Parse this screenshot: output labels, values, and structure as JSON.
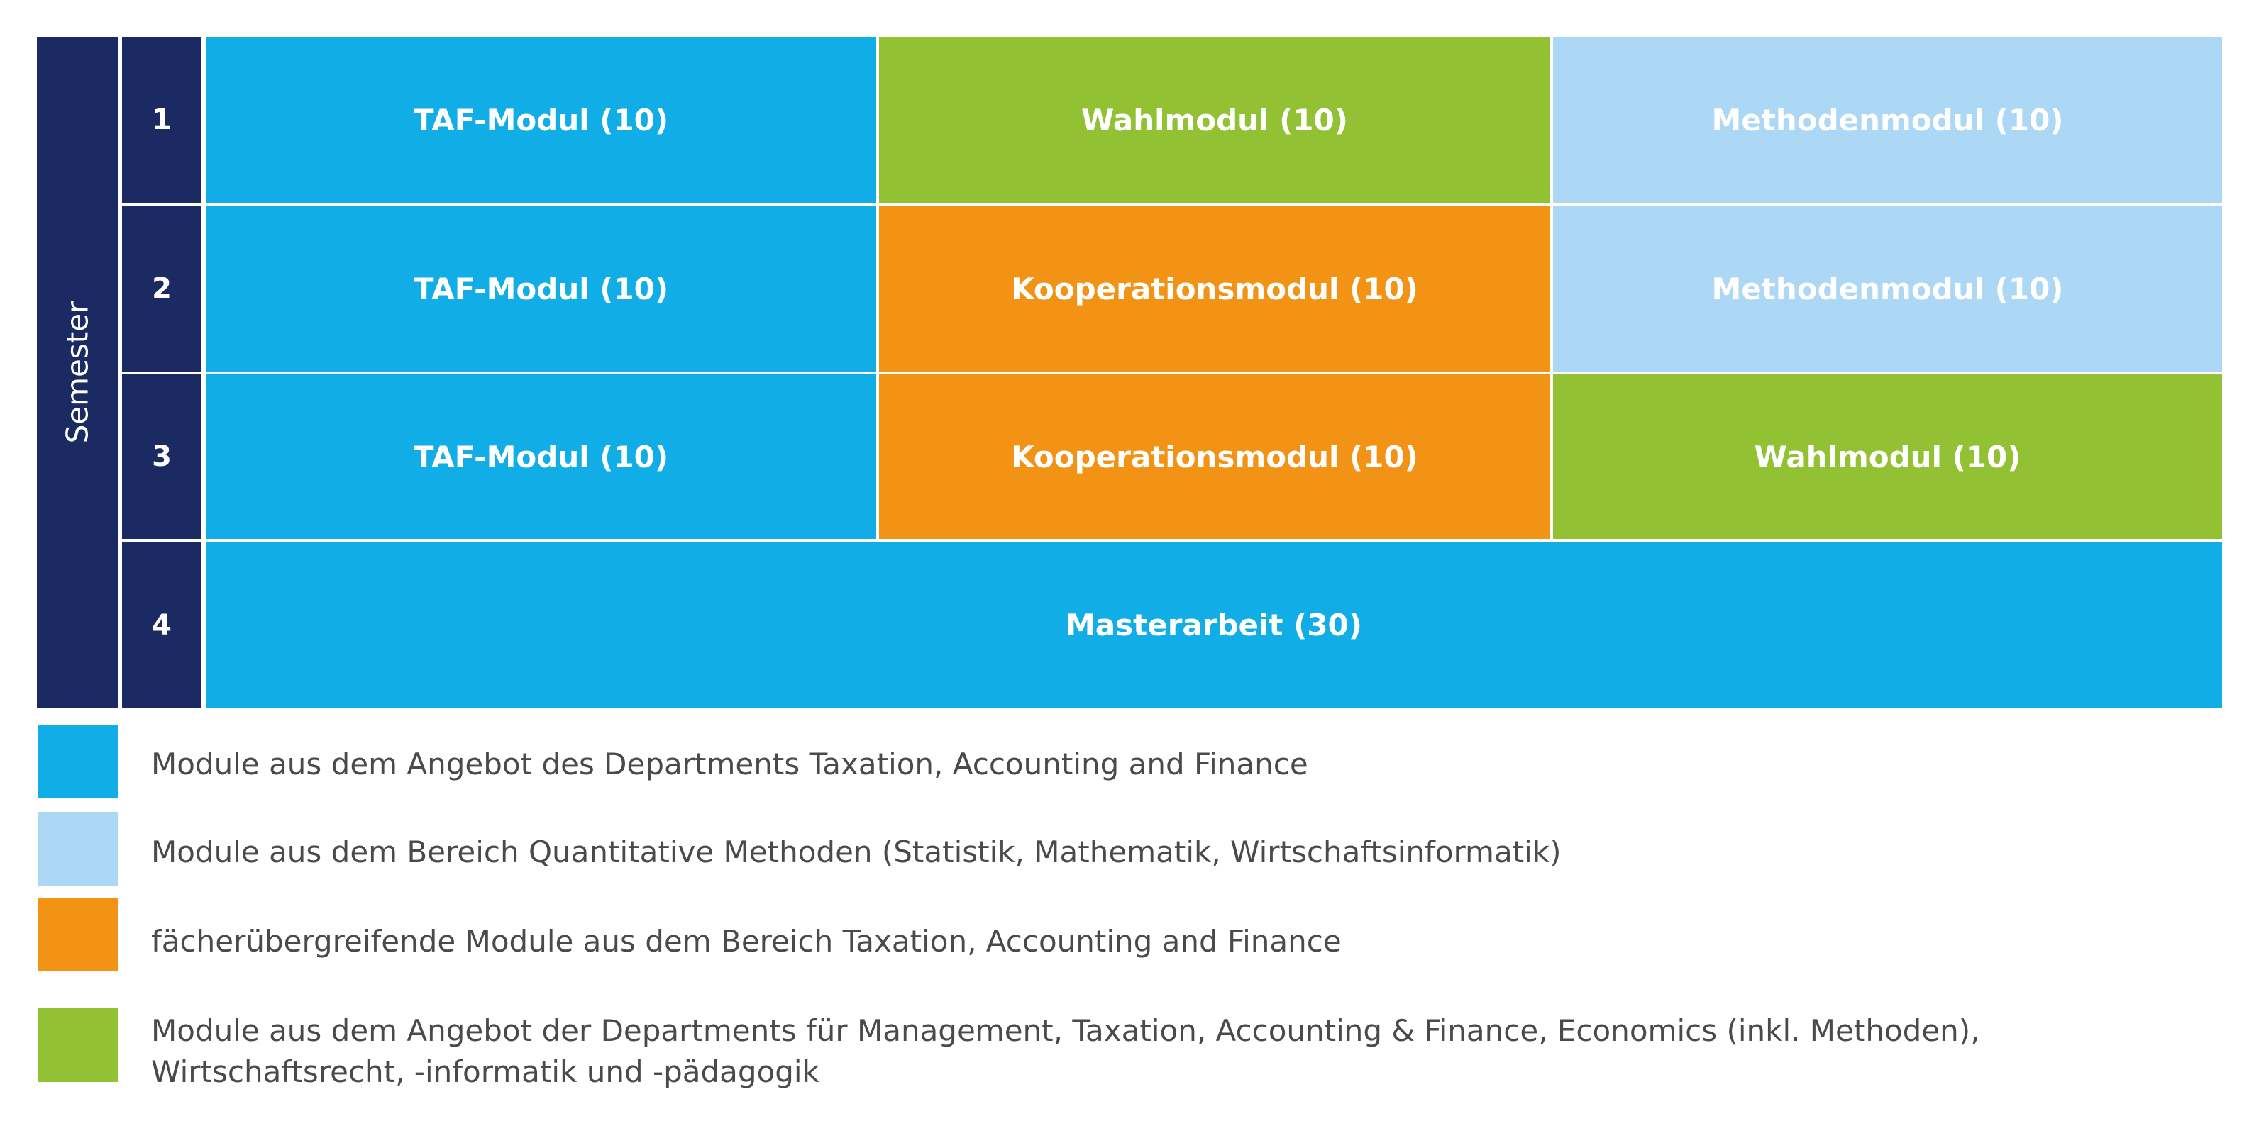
{
  "colors": {
    "navy": "#1c2a64",
    "taf_blue": "#10ade6",
    "light_blue": "#acd7f5",
    "orange": "#f39315",
    "green": "#92c233"
  },
  "grid": {
    "semester_label": "Semester",
    "rows": [
      {
        "number": "1",
        "cells": [
          {
            "label": "TAF-Modul (10)",
            "category": "taf"
          },
          {
            "label": "Wahlmodul (10)",
            "category": "wahl"
          },
          {
            "label": "Methodenmodul (10)",
            "category": "methoden"
          }
        ]
      },
      {
        "number": "2",
        "cells": [
          {
            "label": "TAF-Modul (10)",
            "category": "taf"
          },
          {
            "label": "Kooperationsmodul (10)",
            "category": "kooperation"
          },
          {
            "label": "Methodenmodul (10)",
            "category": "methoden"
          }
        ]
      },
      {
        "number": "3",
        "cells": [
          {
            "label": "TAF-Modul (10)",
            "category": "taf"
          },
          {
            "label": "Kooperationsmodul (10)",
            "category": "kooperation"
          },
          {
            "label": "Wahlmodul (10)",
            "category": "wahl"
          }
        ]
      },
      {
        "number": "4",
        "cells": [
          {
            "label": "Masterarbeit (30)",
            "category": "taf"
          }
        ]
      }
    ]
  },
  "legend": [
    {
      "category": "taf",
      "lines": [
        "Module aus dem Angebot des Departments Taxation, Accounting and Finance"
      ]
    },
    {
      "category": "methoden",
      "lines": [
        "Module aus dem Bereich Quantitative Methoden (Statistik, Mathematik, Wirtschaftsinformatik)"
      ]
    },
    {
      "category": "kooperation",
      "lines": [
        "fächerübergreifende Module aus dem Bereich Taxation, Accounting and Finance"
      ]
    },
    {
      "category": "wahl",
      "lines": [
        "Module aus dem Angebot der Departments für Management, Taxation, Accounting & Finance, Economics (inkl. Methoden),",
        "Wirtschaftsrecht, -informatik und -pädagogik"
      ]
    }
  ]
}
